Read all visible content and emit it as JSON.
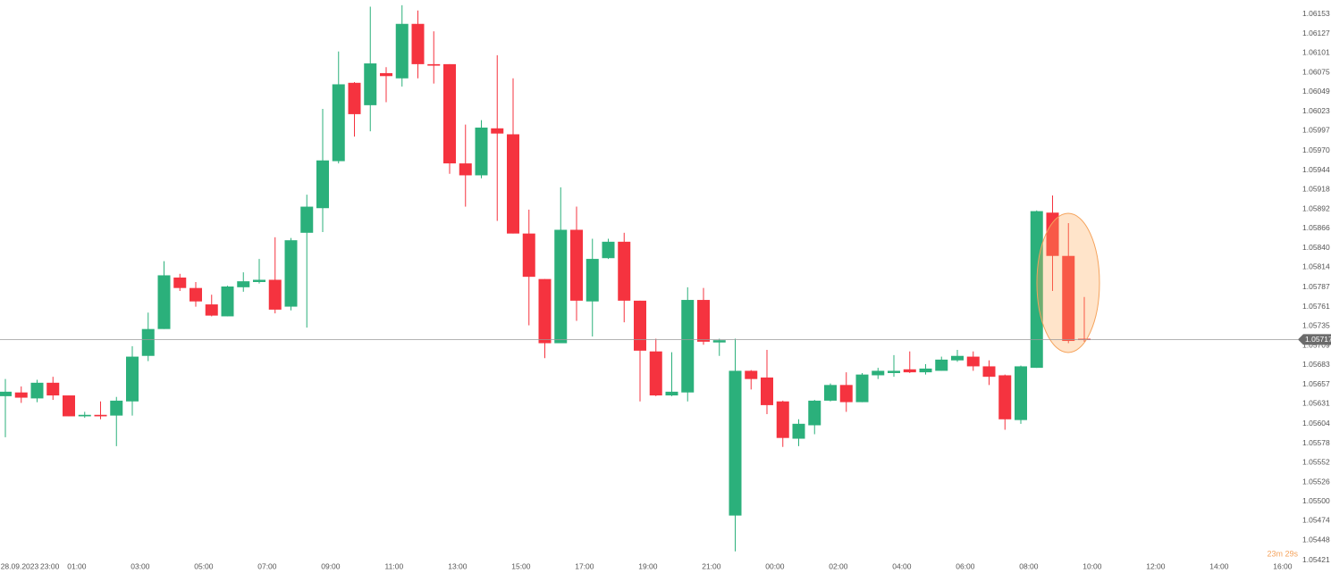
{
  "chart_data": {
    "type": "candlestick",
    "up_color": "#2bb07b",
    "down_color": "#f5333f",
    "ylim": [
      1.05404,
      1.06172
    ],
    "yticks": [
      1.06153,
      1.06127,
      1.06101,
      1.06075,
      1.06049,
      1.06023,
      1.05997,
      {
        "value": 1.0597,
        "label": "1.05970"
      },
      1.05944,
      1.05918,
      1.05892,
      1.05866,
      {
        "value": 1.0584,
        "label": "1.05840"
      },
      1.05814,
      1.05787,
      1.05761,
      1.05735,
      1.05709,
      1.05683,
      1.05657,
      1.05631,
      1.05604,
      1.05578,
      1.05552,
      1.05526,
      {
        "value": 1.055,
        "label": "1.05500"
      },
      1.05474,
      1.05448,
      1.05421
    ],
    "xticks": [
      {
        "value": 0.9,
        "label": "28.09.2023"
      },
      {
        "value": 2.8,
        "label": "23:00"
      },
      {
        "value": 4.5,
        "label": "01:00"
      },
      {
        "value": 8.5,
        "label": "03:00"
      },
      {
        "value": 12.5,
        "label": "05:00"
      },
      {
        "value": 16.5,
        "label": "07:00"
      },
      {
        "value": 20.5,
        "label": "09:00"
      },
      {
        "value": 24.5,
        "label": "11:00"
      },
      {
        "value": 28.5,
        "label": "13:00"
      },
      {
        "value": 32.5,
        "label": "15:00"
      },
      {
        "value": 36.5,
        "label": "17:00"
      },
      {
        "value": 40.5,
        "label": "19:00"
      },
      {
        "value": 44.5,
        "label": "21:00"
      },
      {
        "value": 48.5,
        "label": "00:00"
      },
      {
        "value": 52.5,
        "label": "02:00"
      },
      {
        "value": 56.5,
        "label": "04:00"
      },
      {
        "value": 60.5,
        "label": "06:00"
      },
      {
        "value": 64.5,
        "label": "08:00"
      },
      {
        "value": 68.5,
        "label": "10:00"
      },
      {
        "value": 72.5,
        "label": "12:00"
      },
      {
        "value": 76.5,
        "label": "14:00"
      },
      {
        "value": 80.5,
        "label": "16:00"
      }
    ],
    "open": [
      1.05641,
      1.05646,
      1.05638,
      1.05659,
      1.05642,
      1.05614,
      1.05616,
      1.05615,
      1.05634,
      1.05695,
      1.05731,
      1.058,
      1.05786,
      1.05764,
      1.05748,
      1.05787,
      1.05794,
      1.05797,
      1.05761,
      1.0586,
      1.05893,
      1.05956,
      1.06061,
      1.06031,
      1.06074,
      1.06067,
      1.0614,
      1.06086,
      1.06086,
      1.05953,
      1.05937,
      1.06,
      1.05992,
      1.05859,
      1.05798,
      1.05712,
      1.05864,
      1.05768,
      1.05826,
      1.05848,
      1.05769,
      1.05701,
      1.05642,
      1.05646,
      1.0577,
      1.05713,
      1.05481,
      1.05675,
      1.05666,
      1.05634,
      1.05584,
      1.05602,
      1.05635,
      1.05656,
      1.05633,
      1.05669,
      1.05672,
      1.05677,
      1.05673,
      1.05675,
      1.05689,
      1.05694,
      1.05681,
      1.05669,
      1.05609,
      1.05679,
      1.05887,
      1.05829,
      1.05718
    ],
    "high": [
      1.05664,
      1.05654,
      1.05663,
      1.05667,
      1.05642,
      1.0562,
      1.05634,
      1.0564,
      1.05708,
      1.05753,
      1.05822,
      1.05805,
      1.05794,
      1.05777,
      1.05789,
      1.05807,
      1.05825,
      1.05854,
      1.05853,
      1.05911,
      1.06026,
      1.06103,
      1.06062,
      1.06163,
      1.06082,
      1.06165,
      1.06158,
      1.0613,
      1.06086,
      1.06005,
      1.06011,
      1.06098,
      1.06067,
      1.05891,
      1.05798,
      1.05921,
      1.05895,
      1.05852,
      1.05852,
      1.0586,
      1.05769,
      1.05718,
      1.057,
      1.05787,
      1.05786,
      1.05718,
      1.05718,
      1.05676,
      1.05703,
      1.05635,
      1.0561,
      1.05636,
      1.05658,
      1.05673,
      1.05672,
      1.05679,
      1.05696,
      1.05701,
      1.05684,
      1.05694,
      1.05703,
      1.05701,
      1.05689,
      1.0567,
      1.05682,
      1.0589,
      1.0591,
      1.05873,
      1.05774
    ],
    "low": [
      1.05586,
      1.05632,
      1.05633,
      1.05636,
      1.05614,
      1.05612,
      1.0561,
      1.05574,
      1.05615,
      1.05688,
      1.05731,
      1.05782,
      1.05761,
      1.05748,
      1.05748,
      1.05781,
      1.05792,
      1.05752,
      1.05756,
      1.05733,
      1.05861,
      1.05953,
      1.05989,
      1.05996,
      1.06035,
      1.06056,
      1.06067,
      1.0606,
      1.05939,
      1.05895,
      1.05933,
      1.05876,
      1.05859,
      1.05736,
      1.05692,
      1.05712,
      1.05742,
      1.05721,
      1.05825,
      1.0574,
      1.05634,
      1.05641,
      1.05641,
      1.05634,
      1.0571,
      1.05695,
      1.05433,
      1.0565,
      1.05617,
      1.05573,
      1.05574,
      1.0559,
      1.05634,
      1.0562,
      1.05633,
      1.05664,
      1.05667,
      1.05672,
      1.0567,
      1.05675,
      1.05687,
      1.05675,
      1.05656,
      1.05596,
      1.05604,
      1.05679,
      1.05782,
      1.05712,
      1.05714
    ],
    "close": [
      1.05647,
      1.05639,
      1.05659,
      1.05642,
      1.05614,
      1.05616,
      1.05614,
      1.05635,
      1.05694,
      1.05731,
      1.05803,
      1.05786,
      1.05768,
      1.05749,
      1.05788,
      1.05795,
      1.05797,
      1.05757,
      1.0585,
      1.05895,
      1.05957,
      1.06059,
      1.06019,
      1.06087,
      1.0607,
      1.0614,
      1.06086,
      1.06084,
      1.05953,
      1.05937,
      1.06001,
      1.05993,
      1.05859,
      1.05801,
      1.05712,
      1.05864,
      1.05769,
      1.05825,
      1.05848,
      1.05769,
      1.05702,
      1.05642,
      1.05647,
      1.0577,
      1.05714,
      1.05716,
      1.05675,
      1.05664,
      1.05629,
      1.05585,
      1.05604,
      1.05635,
      1.05656,
      1.05633,
      1.0567,
      1.05675,
      1.05675,
      1.05673,
      1.05678,
      1.0569,
      1.05695,
      1.05681,
      1.05667,
      1.0561,
      1.05681,
      1.05889,
      1.05829,
      1.05715,
      1.05717
    ],
    "current_price": 1.05717,
    "countdown": "23m 29s"
  }
}
